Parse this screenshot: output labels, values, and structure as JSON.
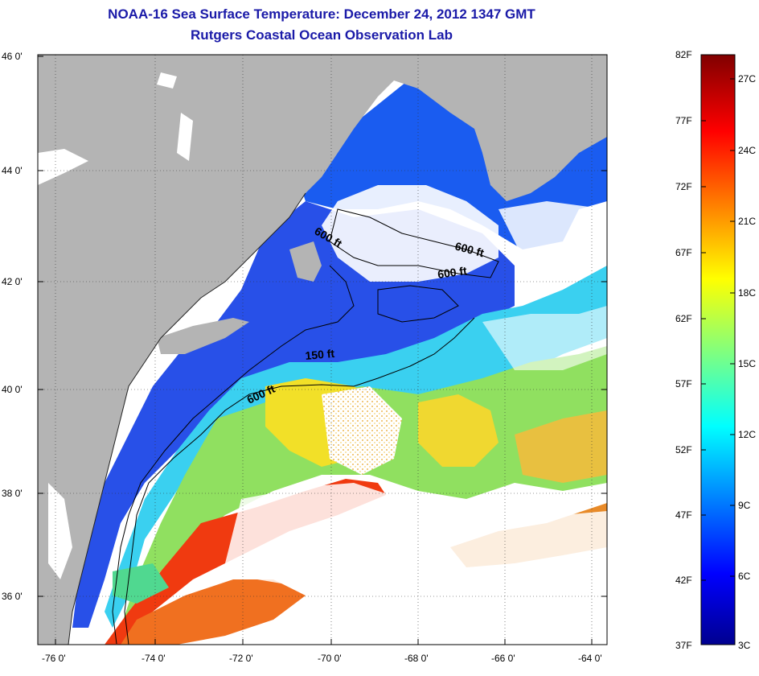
{
  "header": {
    "title": "NOAA-16 Sea Surface Temperature:  December 24, 2012 1347 GMT",
    "subtitle": "Rutgers Coastal Ocean Observation Lab"
  },
  "map": {
    "region": "Northwest Atlantic / Mid-Atlantic Bight",
    "latitude_ticks": [
      "36 0'",
      "38 0'",
      "40 0'",
      "42 0'",
      "44 0'",
      "46 0'"
    ],
    "longitude_ticks": [
      "-76 0'",
      "-74 0'",
      "-72 0'",
      "-70 0'",
      "-68 0'",
      "-66 0'",
      "-64 0'"
    ],
    "grid": "dotted",
    "colors": {
      "land": "#b4b4b4",
      "cloud_mask": "#ffffff",
      "contour": "#000000"
    },
    "contour_labels": [
      "600 ft",
      "600 ft",
      "600 ft",
      "150 ft",
      "600 ft"
    ]
  },
  "colorbar": {
    "fahrenheit_labels": [
      "82F",
      "77F",
      "72F",
      "67F",
      "62F",
      "57F",
      "52F",
      "47F",
      "42F",
      "37F"
    ],
    "celsius_labels": [
      "27C",
      "24C",
      "21C",
      "18C",
      "15C",
      "12C",
      "9C",
      "6C",
      "3C"
    ],
    "colormap": "jet",
    "range_f": [
      37,
      82
    ],
    "range_c": [
      3,
      27.8
    ]
  }
}
